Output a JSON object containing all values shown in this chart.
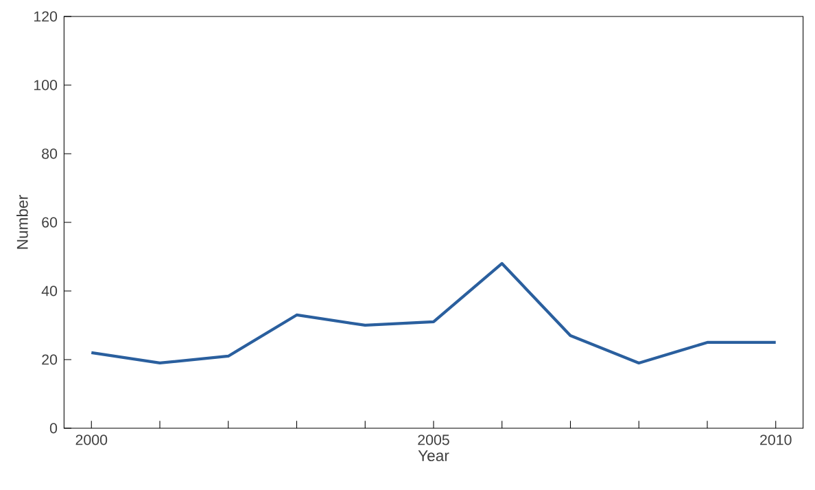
{
  "chart_data": {
    "type": "line",
    "xlabel": "Year",
    "ylabel": "Number",
    "x": [
      2000,
      2001,
      2002,
      2003,
      2004,
      2005,
      2006,
      2007,
      2008,
      2009,
      2010
    ],
    "series": [
      {
        "color": "#2a5f9e",
        "values": [
          22,
          19,
          21,
          33,
          30,
          31,
          48,
          27,
          19,
          25,
          25
        ]
      }
    ],
    "xlim": [
      1999.6,
      2010.4
    ],
    "ylim": [
      0,
      120
    ],
    "xticks": [
      2000,
      {
        "value": 2001,
        "label": null
      },
      {
        "value": 2002,
        "label": null
      },
      {
        "value": 2003,
        "label": null
      },
      {
        "value": 2004,
        "label": null
      },
      2005,
      {
        "value": 2006,
        "label": null
      },
      {
        "value": 2007,
        "label": null
      },
      {
        "value": 2008,
        "label": null
      },
      {
        "value": 2009,
        "label": null
      },
      2010
    ],
    "yticks": [
      0,
      20,
      40,
      60,
      80,
      100,
      120
    ],
    "grid": false,
    "marker": "none",
    "line_style": "solid"
  }
}
